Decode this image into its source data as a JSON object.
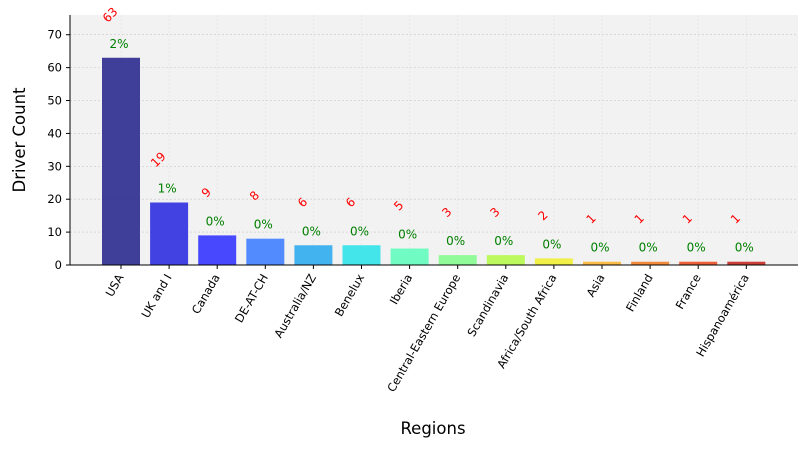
{
  "chart_data": {
    "type": "bar",
    "title": "",
    "xlabel": "Regions",
    "ylabel": "Driver Count",
    "ylim": [
      0,
      76
    ],
    "yticks": [
      0,
      10,
      20,
      30,
      40,
      50,
      60,
      70
    ],
    "grid": true,
    "categories": [
      "USA",
      "UK and I",
      "Canada",
      "DE-AT-CH",
      "Australia/NZ",
      "Benelux",
      "Iberia",
      "Central-Eastern Europe",
      "Scandinavia",
      "Africa/South Africa",
      "Asia",
      "Finland",
      "France",
      "Hispanoamérica"
    ],
    "values": [
      63,
      19,
      9,
      8,
      6,
      6,
      5,
      3,
      3,
      2,
      1,
      1,
      1,
      1
    ],
    "count_labels": [
      "63",
      "19",
      "9",
      "8",
      "6",
      "6",
      "5",
      "3",
      "3",
      "2",
      "1",
      "1",
      "1",
      "1"
    ],
    "percent_labels": [
      "2%",
      "1%",
      "0%",
      "0%",
      "0%",
      "0%",
      "0%",
      "0%",
      "0%",
      "0%",
      "0%",
      "0%",
      "0%",
      "0%"
    ],
    "bar_colors": [
      "#2b2b8f",
      "#2f2fe0",
      "#3535ff",
      "#3f7fff",
      "#30acf0",
      "#30e3e9",
      "#62fcbd",
      "#86fb8f",
      "#b6f94d",
      "#f0f034",
      "#f9b734",
      "#f28129",
      "#e85025",
      "#c52c24"
    ],
    "colors": {
      "count_label": "#ff0000",
      "percent_label": "#008000",
      "plot_background": "#f2f2f2",
      "grid": "#c8c8c8"
    }
  }
}
